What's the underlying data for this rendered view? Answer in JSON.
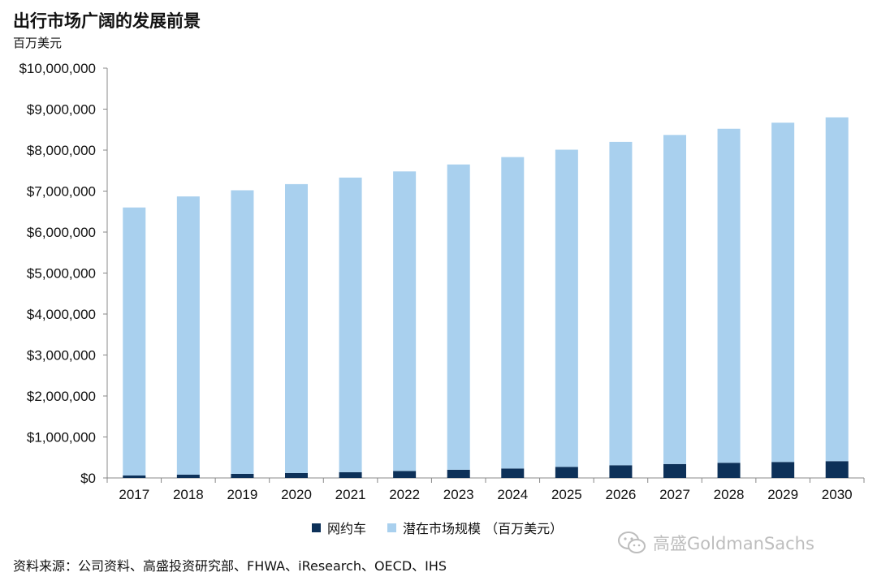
{
  "header": {
    "title": "出行市场广阔的发展前景",
    "unit": "百万美元"
  },
  "colors": {
    "series_dark": "#0d3159",
    "series_light": "#a9d0ee",
    "axis": "#888888"
  },
  "chart_data": {
    "type": "bar",
    "stacked": true,
    "categories": [
      "2017",
      "2018",
      "2019",
      "2020",
      "2021",
      "2022",
      "2023",
      "2024",
      "2025",
      "2026",
      "2027",
      "2028",
      "2029",
      "2030"
    ],
    "series": [
      {
        "name": "网约车",
        "values": [
          60000,
          80000,
          100000,
          120000,
          140000,
          170000,
          200000,
          230000,
          270000,
          310000,
          340000,
          370000,
          390000,
          410000
        ]
      },
      {
        "name": "潜在市场规模 （百万美元）",
        "values": [
          6540000,
          6790000,
          6920000,
          7050000,
          7190000,
          7310000,
          7450000,
          7600000,
          7740000,
          7890000,
          8030000,
          8150000,
          8280000,
          8390000
        ]
      }
    ],
    "yticks": [
      "$0",
      "$1,000,000",
      "$2,000,000",
      "$3,000,000",
      "$4,000,000",
      "$5,000,000",
      "$6,000,000",
      "$7,000,000",
      "$8,000,000",
      "$9,000,000",
      "$10,000,000"
    ],
    "ylim": [
      0,
      10000000
    ],
    "grid": false,
    "legend_position": "bottom"
  },
  "footer": {
    "source": "资料来源：公司资料、高盛投资研究部、FHWA、iResearch、OECD、IHS",
    "brand": "高盛GoldmanSachs",
    "brand_icon": "wechat-icon"
  }
}
